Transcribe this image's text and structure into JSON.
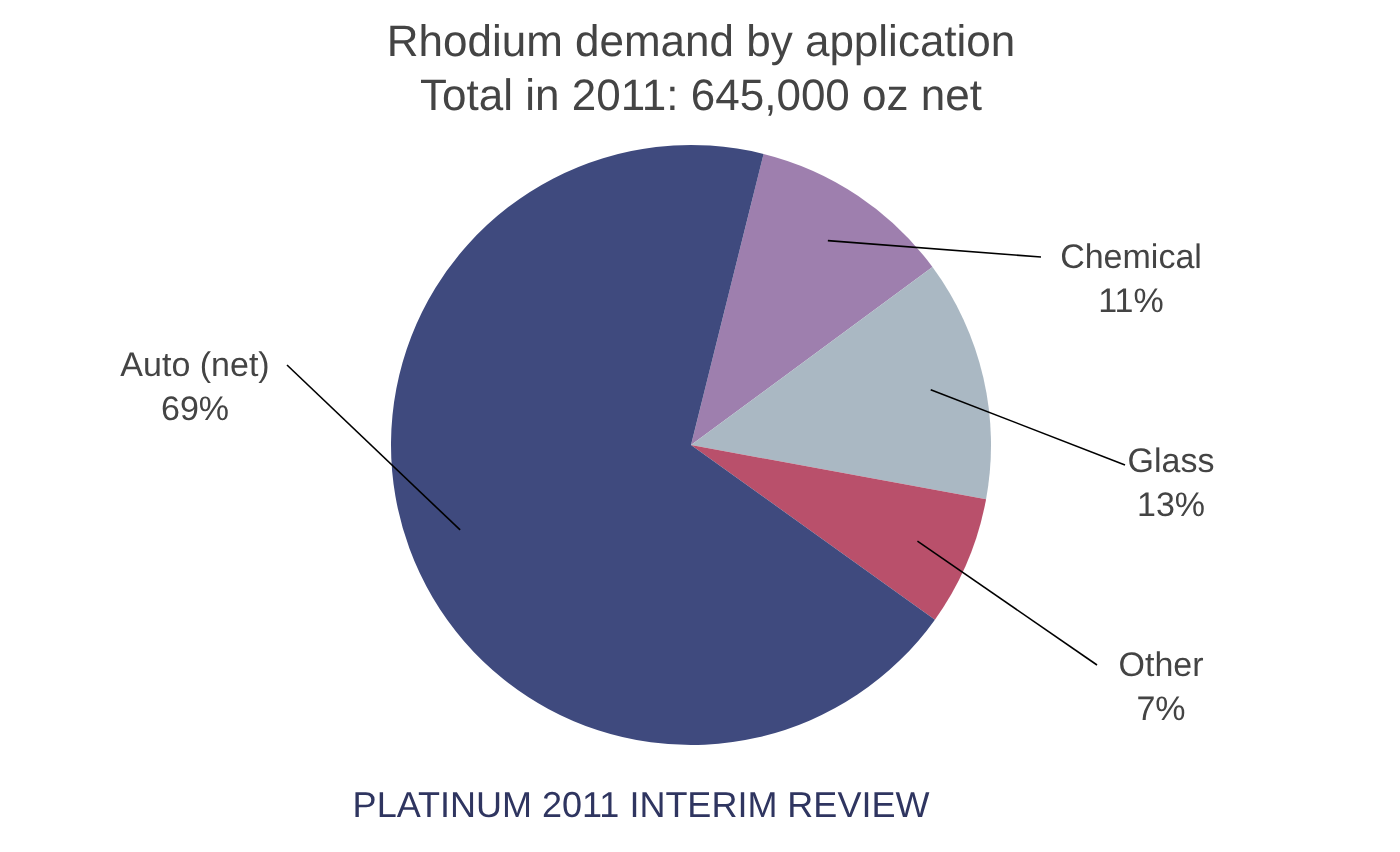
{
  "chart_data": {
    "type": "pie",
    "title": "Rhodium demand by application",
    "subtitle": "Total in 2011: 645,000 oz net",
    "categories": [
      "Chemical",
      "Glass",
      "Other",
      "Auto (net)"
    ],
    "values": [
      11,
      13,
      7,
      69
    ],
    "colors": [
      "#9e7fae",
      "#aab8c3",
      "#b9506b",
      "#3f4a7e"
    ],
    "value_labels": [
      "11%",
      "13%",
      "7%",
      "69%"
    ],
    "annotations": [
      "PLATINUM 2011 INTERIM REVIEW"
    ]
  }
}
